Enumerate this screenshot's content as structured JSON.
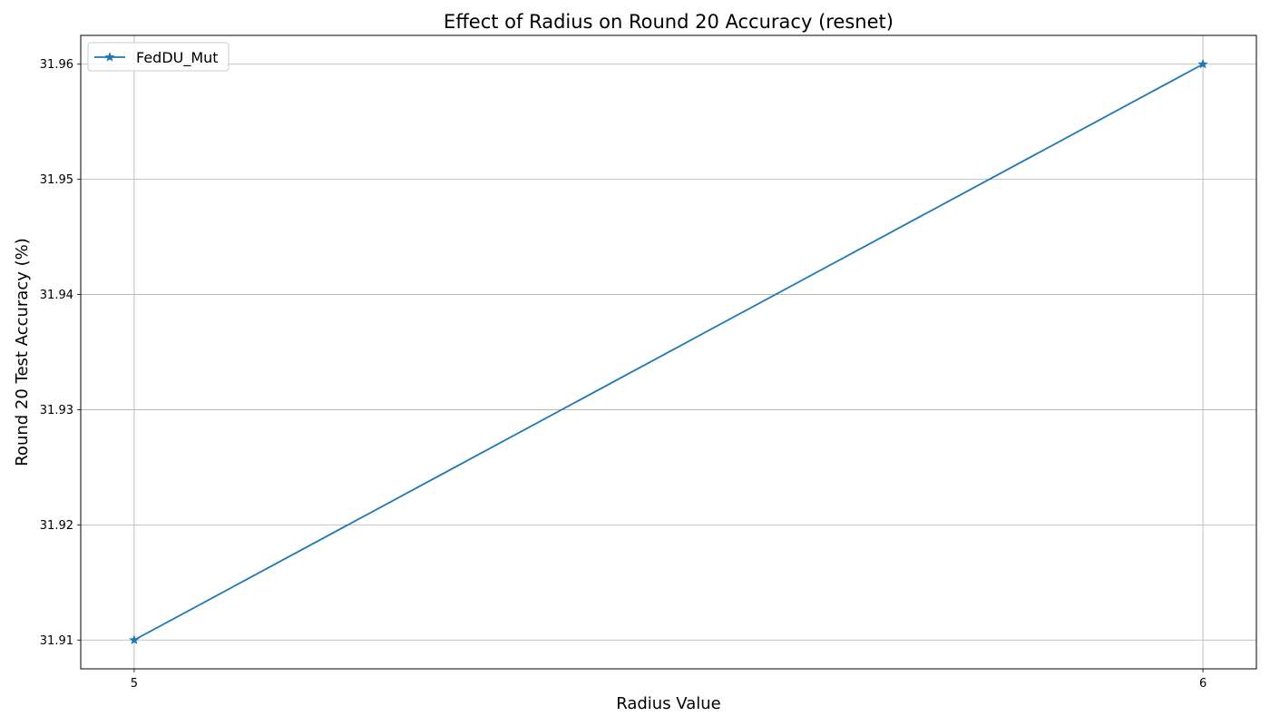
{
  "chart_data": {
    "type": "line",
    "title": "Effect of Radius on Round 20 Accuracy (resnet)",
    "xlabel": "Radius Value",
    "ylabel": "Round 20 Test Accuracy (%)",
    "x": [
      5,
      6
    ],
    "series": [
      {
        "name": "FedDU_Mut",
        "values": [
          31.91,
          31.96
        ],
        "color": "#1f77b4",
        "marker": "star"
      }
    ],
    "xticks": [
      "5",
      "6"
    ],
    "yticks": [
      "31.91",
      "31.92",
      "31.93",
      "31.94",
      "31.95",
      "31.96"
    ],
    "xlim": [
      4.95,
      6.05
    ],
    "ylim": [
      31.9075,
      31.9625
    ],
    "grid": true,
    "legend_position": "top-left"
  }
}
